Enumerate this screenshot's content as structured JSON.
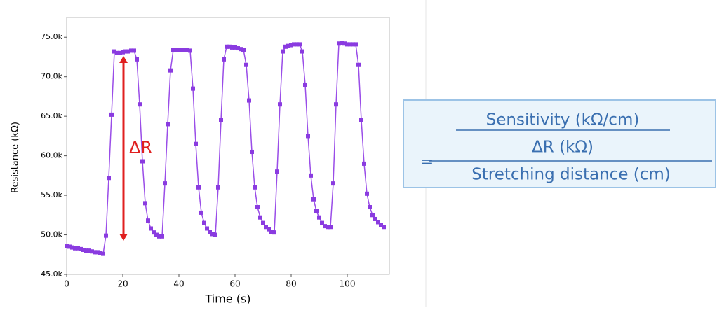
{
  "chart_data": {
    "type": "line",
    "x_label": "Time (s)",
    "y_label": "Resistance (kΩ)",
    "color": "#9a4de8",
    "marker_color": "#8a3be0",
    "xlim": [
      0,
      115
    ],
    "xticks": [
      0,
      20,
      40,
      60,
      80,
      100
    ],
    "ylim": [
      45000,
      77500
    ],
    "yticks": [
      {
        "value": 45000,
        "label": "45.0k"
      },
      {
        "value": 50000,
        "label": "50.0k"
      },
      {
        "value": 55000,
        "label": "55.0k"
      },
      {
        "value": 60000,
        "label": "60.0k"
      },
      {
        "value": 65000,
        "label": "65.0k"
      },
      {
        "value": 70000,
        "label": "70.0k"
      },
      {
        "value": 75000,
        "label": "75.0k"
      }
    ],
    "annotation": "ΔR",
    "annotation_color": "#e02020",
    "x": [
      0,
      1,
      2,
      3,
      4,
      5,
      6,
      7,
      8,
      9,
      10,
      11,
      12,
      13,
      14,
      15,
      16,
      17,
      18,
      19,
      20,
      21,
      22,
      23,
      24,
      25,
      26,
      27,
      28,
      29,
      30,
      31,
      32,
      33,
      34,
      35,
      36,
      37,
      38,
      39,
      40,
      41,
      42,
      43,
      44,
      45,
      46,
      47,
      48,
      49,
      50,
      51,
      52,
      53,
      54,
      55,
      56,
      57,
      58,
      59,
      60,
      61,
      62,
      63,
      64,
      65,
      66,
      67,
      68,
      69,
      70,
      71,
      72,
      73,
      74,
      75,
      76,
      77,
      78,
      79,
      80,
      81,
      82,
      83,
      84,
      85,
      86,
      87,
      88,
      89,
      90,
      91,
      92,
      93,
      94,
      95,
      96,
      97,
      98,
      99,
      100,
      101,
      102,
      103,
      104,
      105,
      106,
      107,
      108,
      109,
      110,
      111,
      112,
      113
    ],
    "values": [
      48600,
      48500,
      48400,
      48300,
      48300,
      48200,
      48100,
      48000,
      48000,
      47900,
      47800,
      47800,
      47700,
      47600,
      49900,
      57200,
      65200,
      73200,
      73000,
      73000,
      73100,
      73200,
      73200,
      73300,
      73300,
      72200,
      66500,
      59300,
      54000,
      51800,
      50800,
      50300,
      50000,
      49800,
      49800,
      56500,
      64000,
      70800,
      73400,
      73400,
      73400,
      73400,
      73400,
      73400,
      73300,
      68500,
      61500,
      56000,
      52800,
      51500,
      50800,
      50400,
      50100,
      50000,
      56000,
      64500,
      72200,
      73800,
      73800,
      73700,
      73700,
      73600,
      73500,
      73400,
      71500,
      67000,
      60500,
      56000,
      53500,
      52200,
      51500,
      51000,
      50700,
      50400,
      50300,
      58000,
      66500,
      73200,
      73800,
      73900,
      74000,
      74100,
      74100,
      74100,
      73200,
      69000,
      62500,
      57500,
      54500,
      53000,
      52200,
      51500,
      51100,
      51000,
      51000,
      56500,
      66500,
      74200,
      74300,
      74200,
      74100,
      74100,
      74100,
      74100,
      71500,
      64500,
      59000,
      55200,
      53500,
      52500,
      52000,
      51600,
      51200,
      51000
    ]
  },
  "formula": {
    "equals": "=",
    "numerator_top": "Sensitivity (kΩ/cm)",
    "numerator": "ΔR (kΩ)",
    "denominator": "Stretching distance (cm)"
  }
}
